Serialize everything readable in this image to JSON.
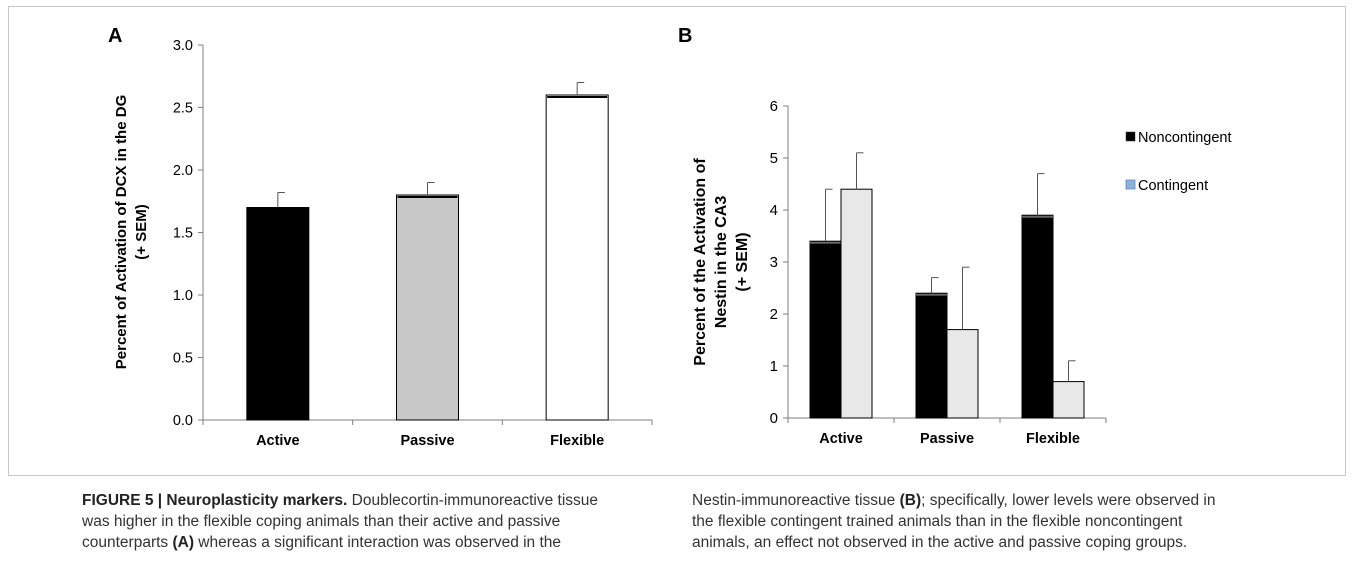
{
  "panels": {
    "a_label": "A",
    "b_label": "B"
  },
  "chart_data": [
    {
      "type": "bar",
      "panel": "A",
      "categories": [
        "Active",
        "Passive",
        "Flexible"
      ],
      "values": [
        1.7,
        1.8,
        2.6
      ],
      "errors": [
        0.12,
        0.1,
        0.1
      ],
      "colors": [
        "#000000",
        "#c8c8c8",
        "#ffffff"
      ],
      "ylabel_line1": "Percent of Activation of DCX in the DG",
      "ylabel_line2": "(+ SEM)",
      "ylim": [
        0,
        3.0
      ],
      "yticks": [
        "0.0",
        "0.5",
        "1.0",
        "1.5",
        "2.0",
        "2.5",
        "3.0"
      ],
      "ytick_values": [
        0,
        0.5,
        1.0,
        1.5,
        2.0,
        2.5,
        3.0
      ],
      "grid": false
    },
    {
      "type": "bar",
      "panel": "B",
      "categories": [
        "Active",
        "Passive",
        "Flexible"
      ],
      "series": [
        {
          "name": "Noncontingent",
          "values": [
            3.4,
            2.4,
            3.9
          ],
          "errors": [
            1.0,
            0.3,
            0.8
          ],
          "color": "#000000"
        },
        {
          "name": "Contingent",
          "values": [
            4.4,
            1.7,
            0.7
          ],
          "errors": [
            0.7,
            1.2,
            0.4
          ],
          "color": "#e8e8e8"
        }
      ],
      "ylabel_line1": "Percent of the Activation of",
      "ylabel_line2": "Nestin in the CA3",
      "ylabel_line3": "(+ SEM)",
      "ylim": [
        0,
        6
      ],
      "yticks": [
        "0",
        "1",
        "2",
        "3",
        "4",
        "5",
        "6"
      ],
      "ytick_values": [
        0,
        1,
        2,
        3,
        4,
        5,
        6
      ],
      "legend_position": "right",
      "grid": false
    }
  ],
  "caption": {
    "left": {
      "lead": "FIGURE 5 | Neuroplasticity markers.",
      "line1_rest": " Doublecortin-immunoreactive tissue",
      "line2": "was higher in the flexible coping animals than their active and passive",
      "line3_pre": "counterparts ",
      "line3_ref": "(A)",
      "line3_post": " whereas a significant interaction was observed in the"
    },
    "right": {
      "line1_pre": "Nestin-immunoreactive tissue ",
      "line1_ref": "(B)",
      "line1_post": "; specifically, lower levels were observed in",
      "line2": "the flexible contingent trained animals than in the flexible noncontingent",
      "line3": "animals, an effect not observed in the active and passive coping groups."
    }
  }
}
